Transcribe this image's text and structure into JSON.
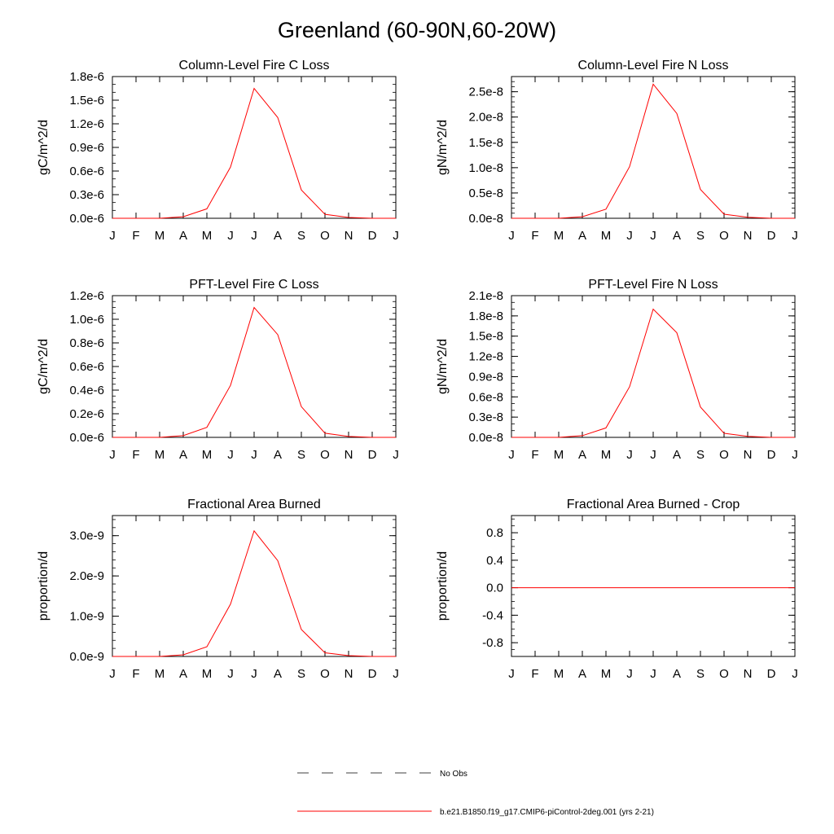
{
  "title": "Greenland (60-90N,60-20W)",
  "colors": {
    "model_line": "#ff0000",
    "obs_line": "#000000",
    "axes": "#000000"
  },
  "legend": {
    "obs_label": "No Obs",
    "model_label": "b.e21.B1850.f19_g17.CMIP6-piControl-2deg.001 (yrs 2-21)"
  },
  "chart_data": [
    {
      "type": "line",
      "title": "Column-Level Fire C Loss",
      "ylabel": "gC/m^2/d",
      "categories": [
        "J",
        "F",
        "M",
        "A",
        "M",
        "J",
        "J",
        "A",
        "S",
        "O",
        "N",
        "D",
        "J"
      ],
      "yticks": [
        "0.0e-6",
        "0.3e-6",
        "0.6e-6",
        "0.9e-6",
        "1.2e-6",
        "1.5e-6",
        "1.8e-6"
      ],
      "ytick_values": [
        0.0,
        0.3,
        0.6,
        0.9,
        1.2,
        1.5,
        1.8
      ],
      "ylim": [
        0.0,
        1.8
      ],
      "minor_ytick_step": 0.1,
      "series": [
        {
          "values": [
            0.0,
            0.0,
            0.0,
            0.02,
            0.12,
            0.65,
            1.65,
            1.28,
            0.36,
            0.05,
            0.01,
            0.0,
            0.0
          ]
        }
      ]
    },
    {
      "type": "line",
      "title": "Column-Level Fire N Loss",
      "ylabel": "gN/m^2/d",
      "categories": [
        "J",
        "F",
        "M",
        "A",
        "M",
        "J",
        "J",
        "A",
        "S",
        "O",
        "N",
        "D",
        "J"
      ],
      "yticks": [
        "0.0e-8",
        "0.5e-8",
        "1.0e-8",
        "1.5e-8",
        "2.0e-8",
        "2.5e-8"
      ],
      "ytick_values": [
        0.0,
        0.5,
        1.0,
        1.5,
        2.0,
        2.5
      ],
      "ylim": [
        0.0,
        2.8
      ],
      "minor_ytick_step": 0.1,
      "series": [
        {
          "values": [
            0.0,
            0.0,
            0.0,
            0.03,
            0.18,
            1.02,
            2.65,
            2.07,
            0.57,
            0.08,
            0.02,
            0.0,
            0.0
          ]
        }
      ]
    },
    {
      "type": "line",
      "title": "PFT-Level Fire C Loss",
      "ylabel": "gC/m^2/d",
      "categories": [
        "J",
        "F",
        "M",
        "A",
        "M",
        "J",
        "J",
        "A",
        "S",
        "O",
        "N",
        "D",
        "J"
      ],
      "yticks": [
        "0.0e-6",
        "0.2e-6",
        "0.4e-6",
        "0.6e-6",
        "0.8e-6",
        "1.0e-6",
        "1.2e-6"
      ],
      "ytick_values": [
        0.0,
        0.2,
        0.4,
        0.6,
        0.8,
        1.0,
        1.2
      ],
      "ylim": [
        0.0,
        1.2
      ],
      "minor_ytick_step": 0.05,
      "series": [
        {
          "values": [
            0.0,
            0.0,
            0.0,
            0.015,
            0.085,
            0.44,
            1.1,
            0.87,
            0.26,
            0.035,
            0.008,
            0.0,
            0.0
          ]
        }
      ]
    },
    {
      "type": "line",
      "title": "PFT-Level Fire N Loss",
      "ylabel": "gN/m^2/d",
      "categories": [
        "J",
        "F",
        "M",
        "A",
        "M",
        "J",
        "J",
        "A",
        "S",
        "O",
        "N",
        "D",
        "J"
      ],
      "yticks": [
        "0.0e-8",
        "0.3e-8",
        "0.6e-8",
        "0.9e-8",
        "1.2e-8",
        "1.5e-8",
        "1.8e-8",
        "2.1e-8"
      ],
      "ytick_values": [
        0.0,
        0.3,
        0.6,
        0.9,
        1.2,
        1.5,
        1.8,
        2.1
      ],
      "ylim": [
        0.0,
        2.1
      ],
      "minor_ytick_step": 0.1,
      "series": [
        {
          "values": [
            0.0,
            0.0,
            0.0,
            0.025,
            0.14,
            0.75,
            1.9,
            1.55,
            0.45,
            0.06,
            0.015,
            0.0,
            0.0
          ]
        }
      ]
    },
    {
      "type": "line",
      "title": "Fractional Area Burned",
      "ylabel": "proportion/d",
      "categories": [
        "J",
        "F",
        "M",
        "A",
        "M",
        "J",
        "J",
        "A",
        "S",
        "O",
        "N",
        "D",
        "J"
      ],
      "yticks": [
        "0.0e-9",
        "1.0e-9",
        "2.0e-9",
        "3.0e-9"
      ],
      "ytick_values": [
        0.0,
        1.0,
        2.0,
        3.0
      ],
      "ylim": [
        0.0,
        3.5
      ],
      "minor_ytick_step": 0.2,
      "series": [
        {
          "values": [
            0.0,
            0.0,
            0.0,
            0.04,
            0.24,
            1.3,
            3.12,
            2.38,
            0.67,
            0.09,
            0.02,
            0.0,
            0.0
          ]
        }
      ]
    },
    {
      "type": "line",
      "title": "Fractional Area Burned - Crop",
      "ylabel": "proportion/d",
      "categories": [
        "J",
        "F",
        "M",
        "A",
        "M",
        "J",
        "J",
        "A",
        "S",
        "O",
        "N",
        "D",
        "J"
      ],
      "yticks": [
        "-0.8",
        "-0.4",
        "0.0",
        "0.4",
        "0.8"
      ],
      "ytick_values": [
        -0.8,
        -0.4,
        0.0,
        0.4,
        0.8
      ],
      "ylim": [
        -1.0,
        1.05
      ],
      "minor_ytick_step": 0.1,
      "series": [
        {
          "values": [
            0.0,
            0.0,
            0.0,
            0.0,
            0.0,
            0.0,
            0.0,
            0.0,
            0.0,
            0.0,
            0.0,
            0.0,
            0.0
          ]
        }
      ]
    }
  ]
}
